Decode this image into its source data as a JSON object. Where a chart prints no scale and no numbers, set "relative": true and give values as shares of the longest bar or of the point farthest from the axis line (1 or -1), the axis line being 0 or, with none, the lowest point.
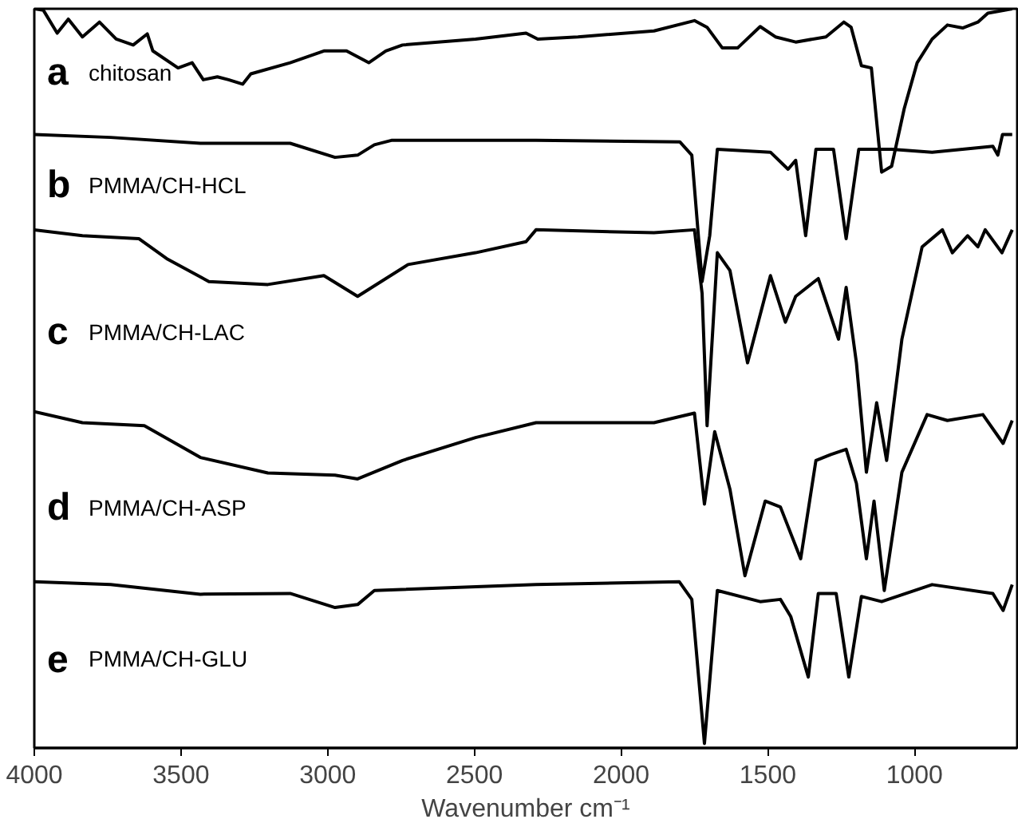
{
  "chart_data": {
    "type": "line",
    "relative": true,
    "xlabel": "Wavenumber cm⁻¹",
    "xlim": [
      4000,
      650
    ],
    "xticks": [
      4000,
      3500,
      3000,
      2500,
      2000,
      1500,
      1000
    ],
    "grid": false,
    "legend": false,
    "marker": "none",
    "line_style": "solid",
    "series": [
      {
        "name": "chitosan",
        "color": "#000000",
        "x": [
          4000,
          3969,
          3922,
          3884,
          3836,
          3778,
          3721,
          3663,
          3615,
          3596,
          3510,
          3462,
          3424,
          3376,
          3338,
          3290,
          3262,
          3128,
          3013,
          2936,
          2860,
          2802,
          2745,
          2496,
          2324,
          2284,
          2147,
          1888,
          1750,
          1707,
          1655,
          1603,
          1526,
          1474,
          1405,
          1302,
          1241,
          1216,
          1181,
          1147,
          1112,
          1078,
          1035,
          991,
          940,
          888,
          836,
          784,
          750,
          667
        ],
        "values": [
          1.0,
          0.998,
          0.967,
          0.986,
          0.962,
          0.982,
          0.959,
          0.951,
          0.966,
          0.943,
          0.92,
          0.927,
          0.904,
          0.908,
          0.904,
          0.898,
          0.912,
          0.927,
          0.943,
          0.943,
          0.927,
          0.943,
          0.951,
          0.959,
          0.967,
          0.959,
          0.962,
          0.97,
          0.984,
          0.975,
          0.947,
          0.947,
          0.976,
          0.962,
          0.955,
          0.962,
          0.982,
          0.975,
          0.923,
          0.92,
          0.779,
          0.787,
          0.865,
          0.927,
          0.959,
          0.978,
          0.974,
          0.982,
          0.994,
          1.0
        ]
      },
      {
        "name": "PMMA/CH-HCL",
        "color": "#000000",
        "x": [
          4000,
          3740,
          3434,
          3128,
          2975,
          2898,
          2841,
          2783,
          2290,
          1800,
          1759,
          1724,
          1698,
          1672,
          1491,
          1431,
          1405,
          1371,
          1336,
          1276,
          1233,
          1190,
          1078,
          940,
          733,
          716,
          700,
          667
        ],
        "values": [
          0.83,
          0.826,
          0.818,
          0.818,
          0.799,
          0.802,
          0.816,
          0.822,
          0.822,
          0.82,
          0.802,
          0.631,
          0.693,
          0.81,
          0.806,
          0.783,
          0.795,
          0.693,
          0.81,
          0.81,
          0.689,
          0.81,
          0.81,
          0.806,
          0.814,
          0.802,
          0.83,
          0.83
        ]
      },
      {
        "name": "PMMA/CH-LAC",
        "color": "#000000",
        "x": [
          4000,
          3836,
          3644,
          3549,
          3405,
          3204,
          3013,
          2898,
          2726,
          2496,
          2324,
          2290,
          1888,
          1750,
          1724,
          1707,
          1672,
          1629,
          1569,
          1491,
          1440,
          1405,
          1328,
          1259,
          1233,
          1198,
          1164,
          1129,
          1095,
          1043,
          974,
          905,
          871,
          819,
          784,
          759,
          702,
          667
        ],
        "values": [
          0.701,
          0.693,
          0.689,
          0.662,
          0.631,
          0.627,
          0.639,
          0.611,
          0.654,
          0.67,
          0.685,
          0.701,
          0.697,
          0.701,
          0.615,
          0.436,
          0.67,
          0.646,
          0.521,
          0.639,
          0.576,
          0.611,
          0.635,
          0.553,
          0.623,
          0.521,
          0.373,
          0.467,
          0.389,
          0.553,
          0.678,
          0.701,
          0.67,
          0.693,
          0.678,
          0.701,
          0.67,
          0.701
        ]
      },
      {
        "name": "PMMA/CH-ASP",
        "color": "#000000",
        "x": [
          4000,
          3836,
          3625,
          3434,
          3204,
          2975,
          2898,
          2745,
          2496,
          2290,
          1888,
          1750,
          1716,
          1681,
          1629,
          1578,
          1509,
          1457,
          1388,
          1336,
          1285,
          1233,
          1198,
          1164,
          1138,
          1103,
          1043,
          957,
          888,
          767,
          698,
          667
        ],
        "values": [
          0.455,
          0.44,
          0.436,
          0.393,
          0.372,
          0.369,
          0.364,
          0.389,
          0.42,
          0.44,
          0.44,
          0.453,
          0.33,
          0.428,
          0.35,
          0.233,
          0.334,
          0.326,
          0.256,
          0.389,
          0.397,
          0.404,
          0.358,
          0.256,
          0.334,
          0.213,
          0.373,
          0.451,
          0.443,
          0.451,
          0.412,
          0.443
        ]
      },
      {
        "name": "PMMA/CH-GLU",
        "color": "#000000",
        "x": [
          4000,
          3740,
          3434,
          3128,
          2975,
          2898,
          2841,
          2290,
          1802,
          1759,
          1716,
          1672,
          1526,
          1457,
          1422,
          1362,
          1328,
          1267,
          1224,
          1181,
          1112,
          940,
          733,
          698,
          667
        ],
        "values": [
          0.225,
          0.221,
          0.208,
          0.209,
          0.19,
          0.194,
          0.213,
          0.221,
          0.225,
          0.201,
          0.006,
          0.213,
          0.198,
          0.201,
          0.178,
          0.096,
          0.209,
          0.209,
          0.096,
          0.205,
          0.198,
          0.221,
          0.209,
          0.186,
          0.221
        ]
      }
    ],
    "annotations": [
      "a",
      "b",
      "c",
      "d",
      "e"
    ]
  }
}
